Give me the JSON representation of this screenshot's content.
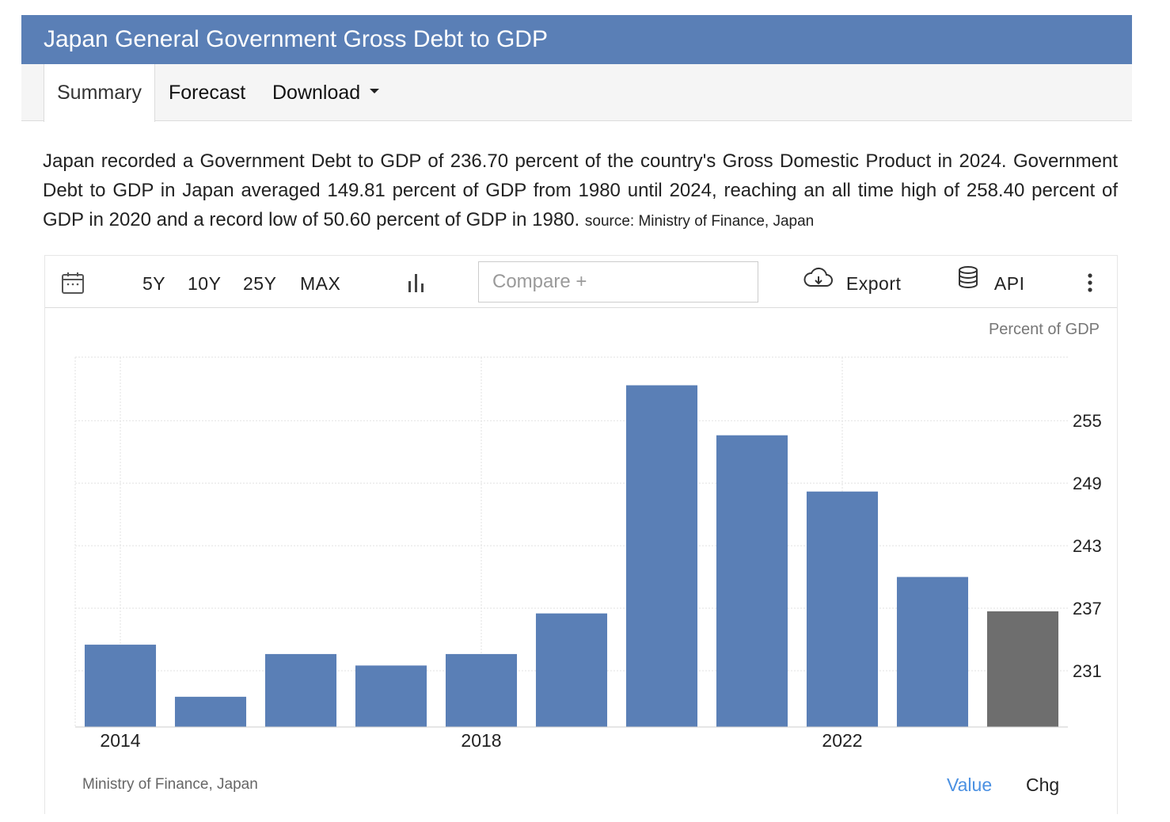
{
  "header": {
    "title": "Japan General Government Gross Debt to GDP"
  },
  "tabs": [
    {
      "label": "Summary"
    },
    {
      "label": "Forecast"
    },
    {
      "label": "Download"
    }
  ],
  "description": {
    "text": "Japan recorded a Government Debt to GDP of 236.70 percent of the country's Gross Domestic Product in 2024. Government Debt to GDP in Japan averaged 149.81 percent of GDP from 1980 until 2024, reaching an all time high of 258.40 percent of GDP in 2020 and a record low of 50.60 percent of GDP in 1980.",
    "source": "source: Ministry of Finance, Japan"
  },
  "toolbar": {
    "ranges": [
      "5Y",
      "10Y",
      "25Y",
      "MAX"
    ],
    "compare_placeholder": "Compare +",
    "export_label": "Export",
    "api_label": "API"
  },
  "chart_footer": {
    "source": "Ministry of Finance, Japan",
    "value_label": "Value",
    "chg_label": "Chg"
  },
  "colors": {
    "header": "#5a7fb6",
    "bar": "#5a7fb6",
    "bar_latest": "#6e6e6e",
    "link": "#4a90e2"
  },
  "chart_data": {
    "type": "bar",
    "unit_label": "Percent of GDP",
    "categories": [
      "2014",
      "2015",
      "2016",
      "2017",
      "2018",
      "2019",
      "2020",
      "2021",
      "2022",
      "2023",
      "2024"
    ],
    "values": [
      233.5,
      228.5,
      232.6,
      231.5,
      232.6,
      236.5,
      258.4,
      253.6,
      248.2,
      240.0,
      236.7
    ],
    "highlight_last": true,
    "x_tick_labels": [
      "2014",
      "2018",
      "2022"
    ],
    "y_ticks": [
      231,
      237,
      243,
      249,
      255
    ],
    "ylim": [
      225.6,
      261.1
    ],
    "y_axis_position": "right",
    "grid": true
  }
}
